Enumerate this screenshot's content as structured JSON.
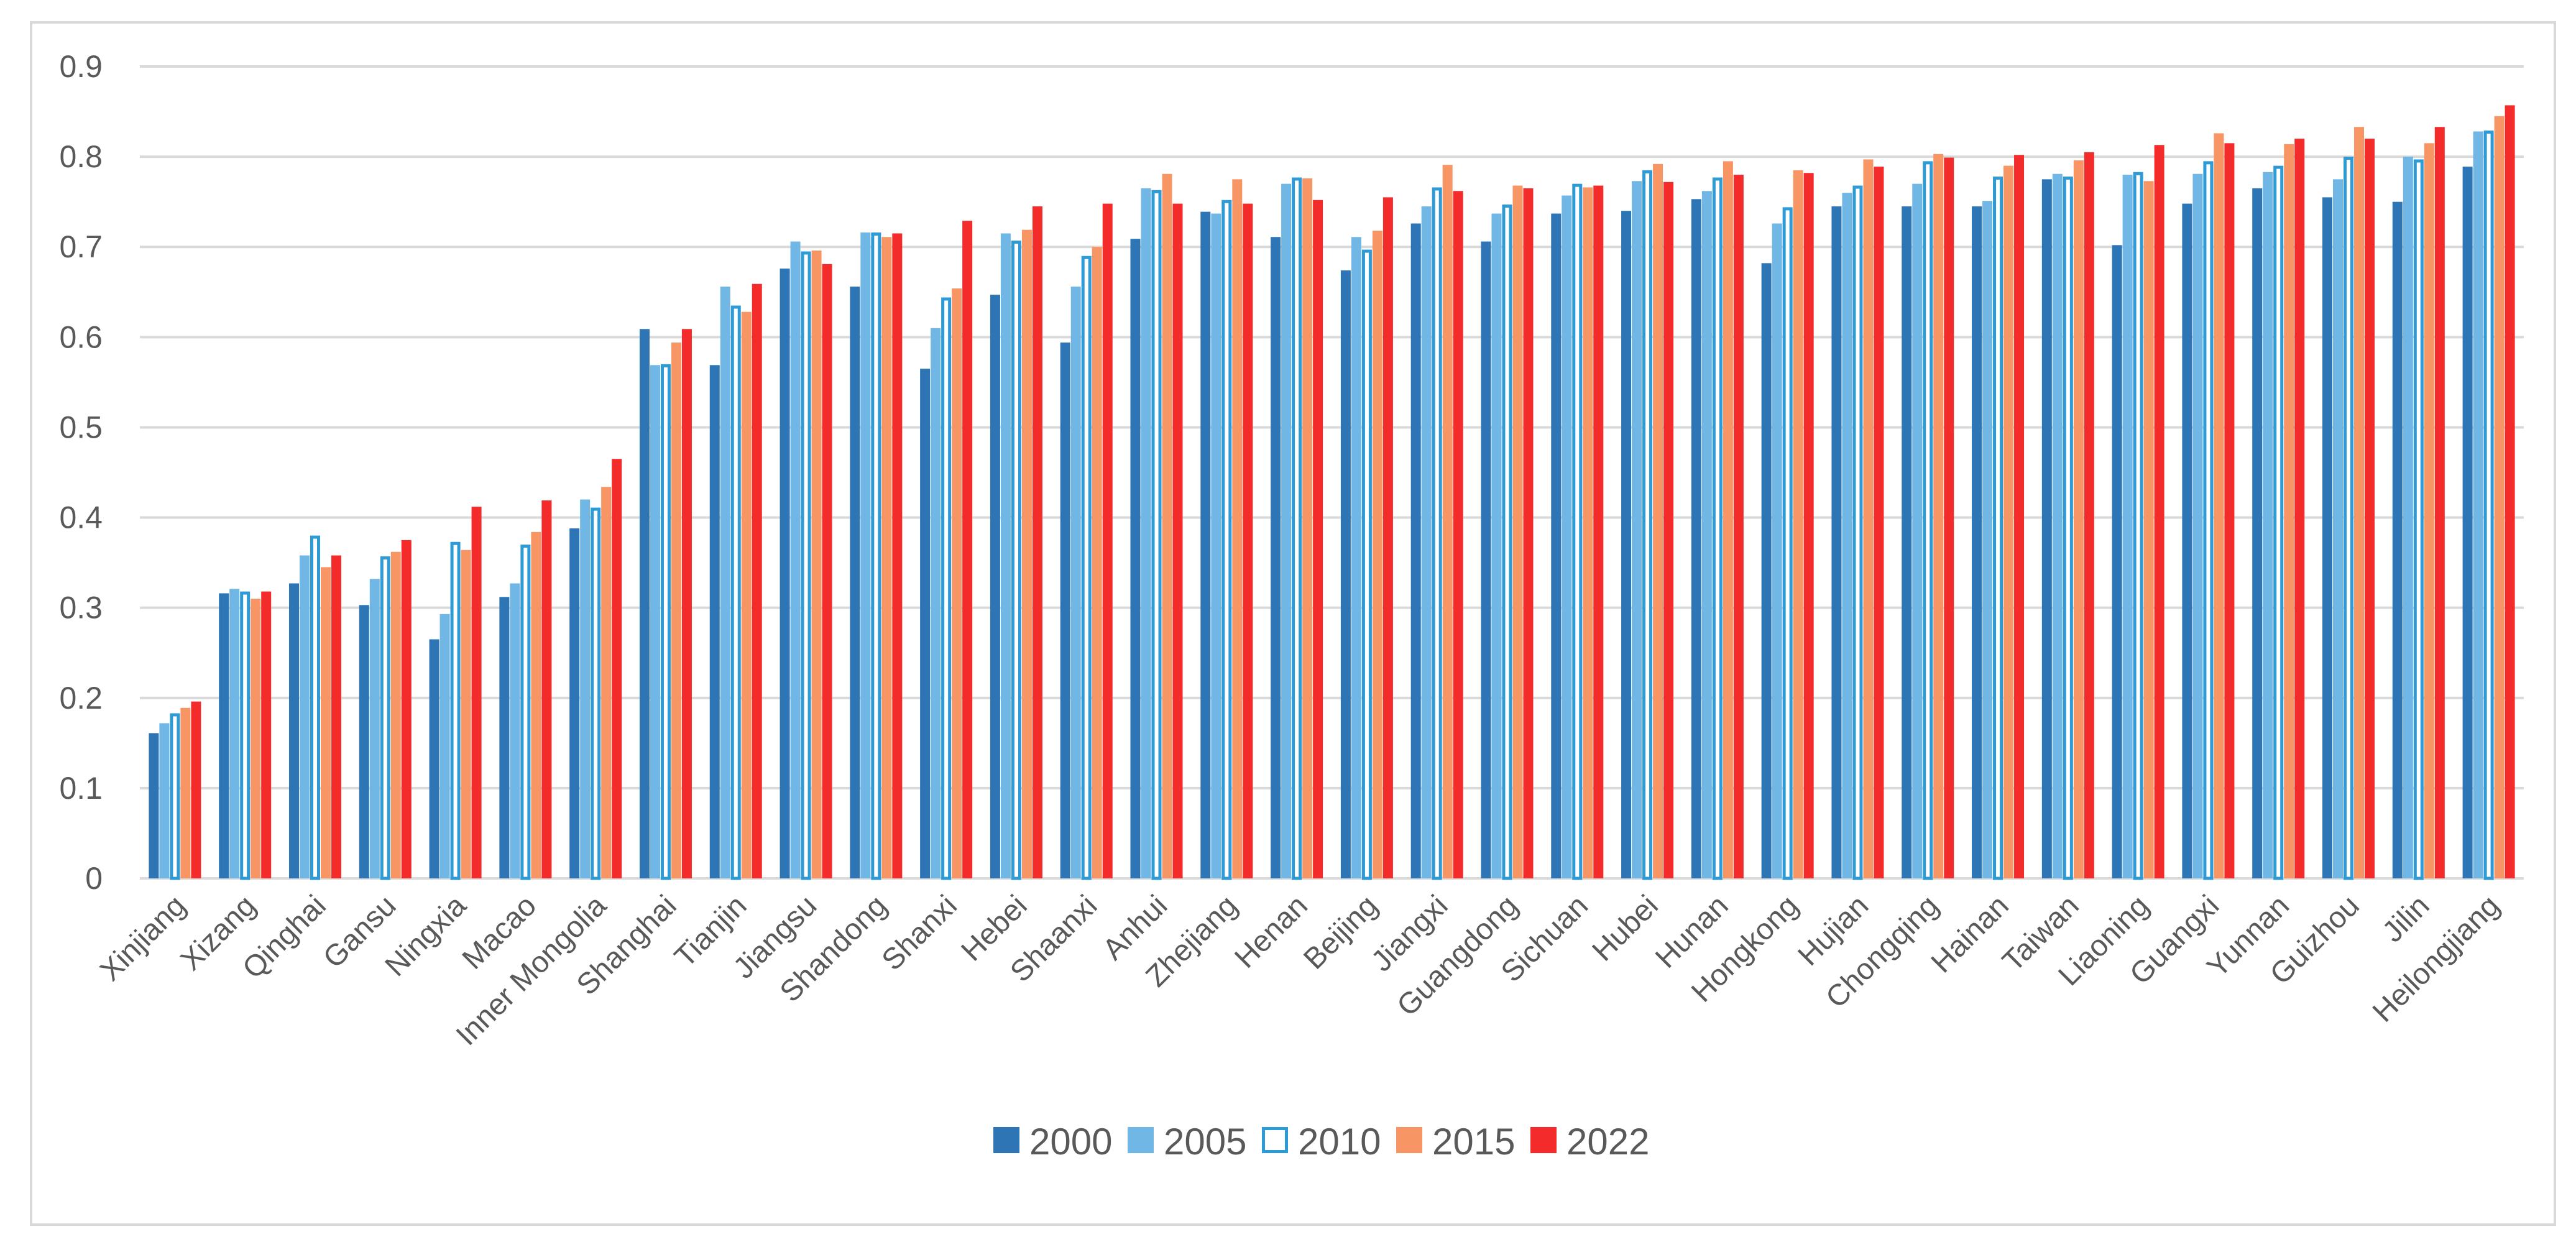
{
  "chart_data": {
    "type": "bar",
    "title": "",
    "xlabel": "",
    "ylabel": "",
    "ylim": [
      0,
      0.9
    ],
    "yticks": [
      "0",
      "0.1",
      "0.2",
      "0.3",
      "0.4",
      "0.5",
      "0.6",
      "0.7",
      "0.8",
      "0.9"
    ],
    "grid": true,
    "legend_position": "bottom",
    "categories": [
      "Xinjiang",
      "Xizang",
      "Qinghai",
      "Gansu",
      "Ningxia",
      "Macao",
      "Inner Mongolia",
      "Shanghai",
      "Tianjin",
      "Jiangsu",
      "Shandong",
      "Shanxi",
      "Hebei",
      "Shaanxi",
      "Anhui",
      "Zhejiang",
      "Henan",
      "Beijing",
      "Jiangxi",
      "Guangdong",
      "Sichuan",
      "Hubei",
      "Hunan",
      "Hongkong",
      "Hujian",
      "Chongqing",
      "Hainan",
      "Taiwan",
      "Liaoning",
      "Guangxi",
      "Yunnan",
      "Guizhou",
      "Jilin",
      "Heilongjiang"
    ],
    "series": [
      {
        "name": "2000",
        "color": "#2e75b6",
        "style": "solid",
        "values": [
          0.161,
          0.316,
          0.327,
          0.303,
          0.265,
          0.312,
          0.388,
          0.609,
          0.569,
          0.676,
          0.656,
          0.565,
          0.647,
          0.594,
          0.709,
          0.739,
          0.711,
          0.674,
          0.726,
          0.706,
          0.737,
          0.74,
          0.753,
          0.682,
          0.745,
          0.745,
          0.745,
          0.775,
          0.702,
          0.748,
          0.765,
          0.755,
          0.75,
          0.789
        ]
      },
      {
        "name": "2005",
        "color": "#70b7e5",
        "style": "solid",
        "values": [
          0.172,
          0.321,
          0.358,
          0.332,
          0.293,
          0.327,
          0.42,
          0.569,
          0.656,
          0.706,
          0.716,
          0.61,
          0.715,
          0.656,
          0.765,
          0.737,
          0.77,
          0.711,
          0.745,
          0.737,
          0.757,
          0.773,
          0.762,
          0.726,
          0.76,
          0.77,
          0.751,
          0.781,
          0.78,
          0.781,
          0.783,
          0.775,
          0.8,
          0.828
        ]
      },
      {
        "name": "2010",
        "color": "#2e9bd6",
        "style": "outline",
        "values": [
          0.183,
          0.318,
          0.38,
          0.357,
          0.373,
          0.37,
          0.411,
          0.57,
          0.635,
          0.695,
          0.716,
          0.644,
          0.707,
          0.69,
          0.763,
          0.752,
          0.777,
          0.697,
          0.766,
          0.747,
          0.77,
          0.785,
          0.777,
          0.744,
          0.768,
          0.795,
          0.778,
          0.778,
          0.783,
          0.795,
          0.79,
          0.8,
          0.797,
          0.829
        ]
      },
      {
        "name": "2015",
        "color": "#f79565",
        "style": "solid",
        "values": [
          0.189,
          0.31,
          0.345,
          0.362,
          0.364,
          0.384,
          0.434,
          0.594,
          0.628,
          0.696,
          0.711,
          0.654,
          0.719,
          0.7,
          0.781,
          0.775,
          0.776,
          0.718,
          0.791,
          0.768,
          0.766,
          0.792,
          0.795,
          0.785,
          0.797,
          0.803,
          0.79,
          0.796,
          0.773,
          0.826,
          0.814,
          0.833,
          0.815,
          0.845
        ]
      },
      {
        "name": "2022",
        "color": "#f32b2b",
        "style": "solid",
        "values": [
          0.196,
          0.318,
          0.358,
          0.375,
          0.412,
          0.419,
          0.465,
          0.609,
          0.659,
          0.681,
          0.715,
          0.729,
          0.745,
          0.748,
          0.748,
          0.748,
          0.752,
          0.755,
          0.762,
          0.765,
          0.768,
          0.772,
          0.78,
          0.782,
          0.789,
          0.799,
          0.802,
          0.805,
          0.813,
          0.815,
          0.82,
          0.82,
          0.833,
          0.857
        ]
      }
    ]
  }
}
